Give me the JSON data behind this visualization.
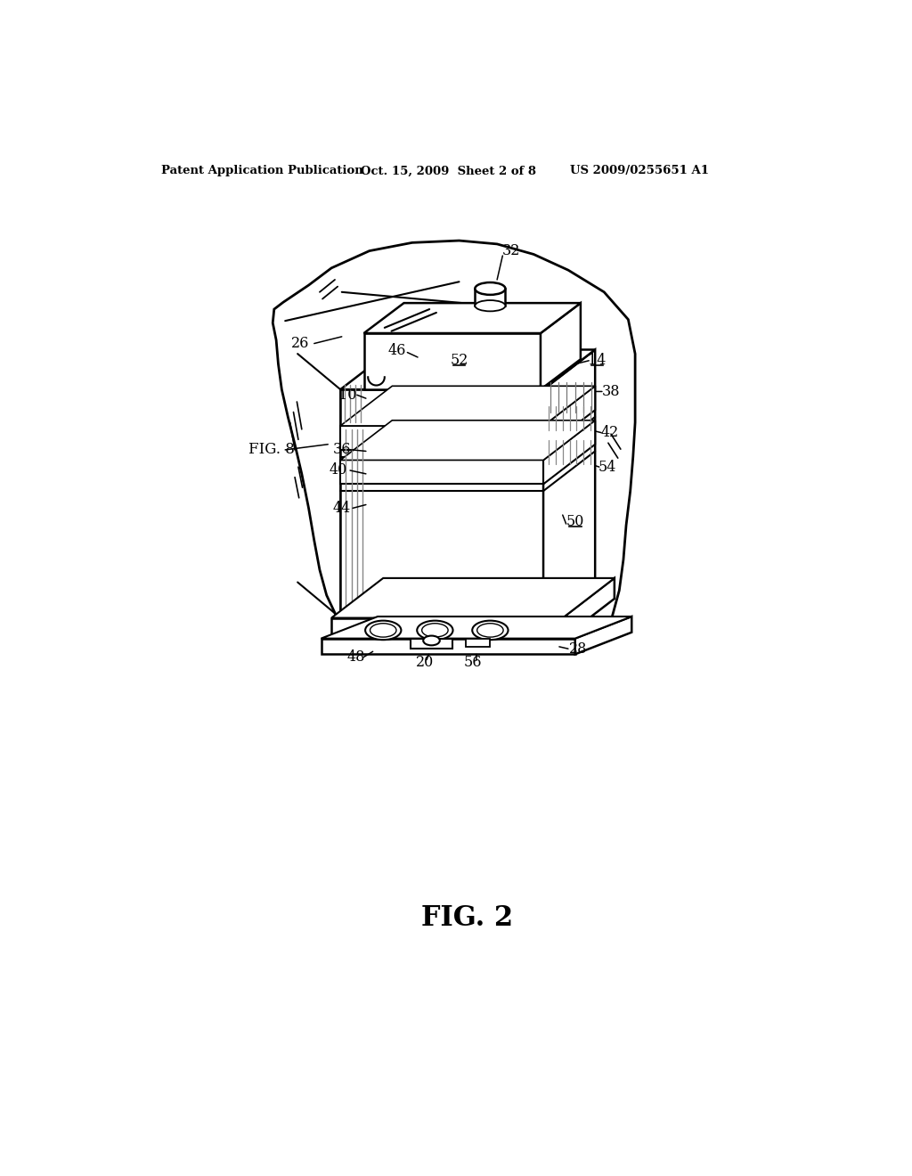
{
  "background_color": "#ffffff",
  "header_left": "Patent Application Publication",
  "header_center": "Oct. 15, 2009  Sheet 2 of 8",
  "header_right": "US 2009/0255651 A1",
  "fig_label": "FIG. 2",
  "fig8_label": "FIG. 8",
  "outer_fc": "#ffffff",
  "outer_ec": "#000000",
  "device_fc": "#ffffff",
  "device_ec": "#000000"
}
